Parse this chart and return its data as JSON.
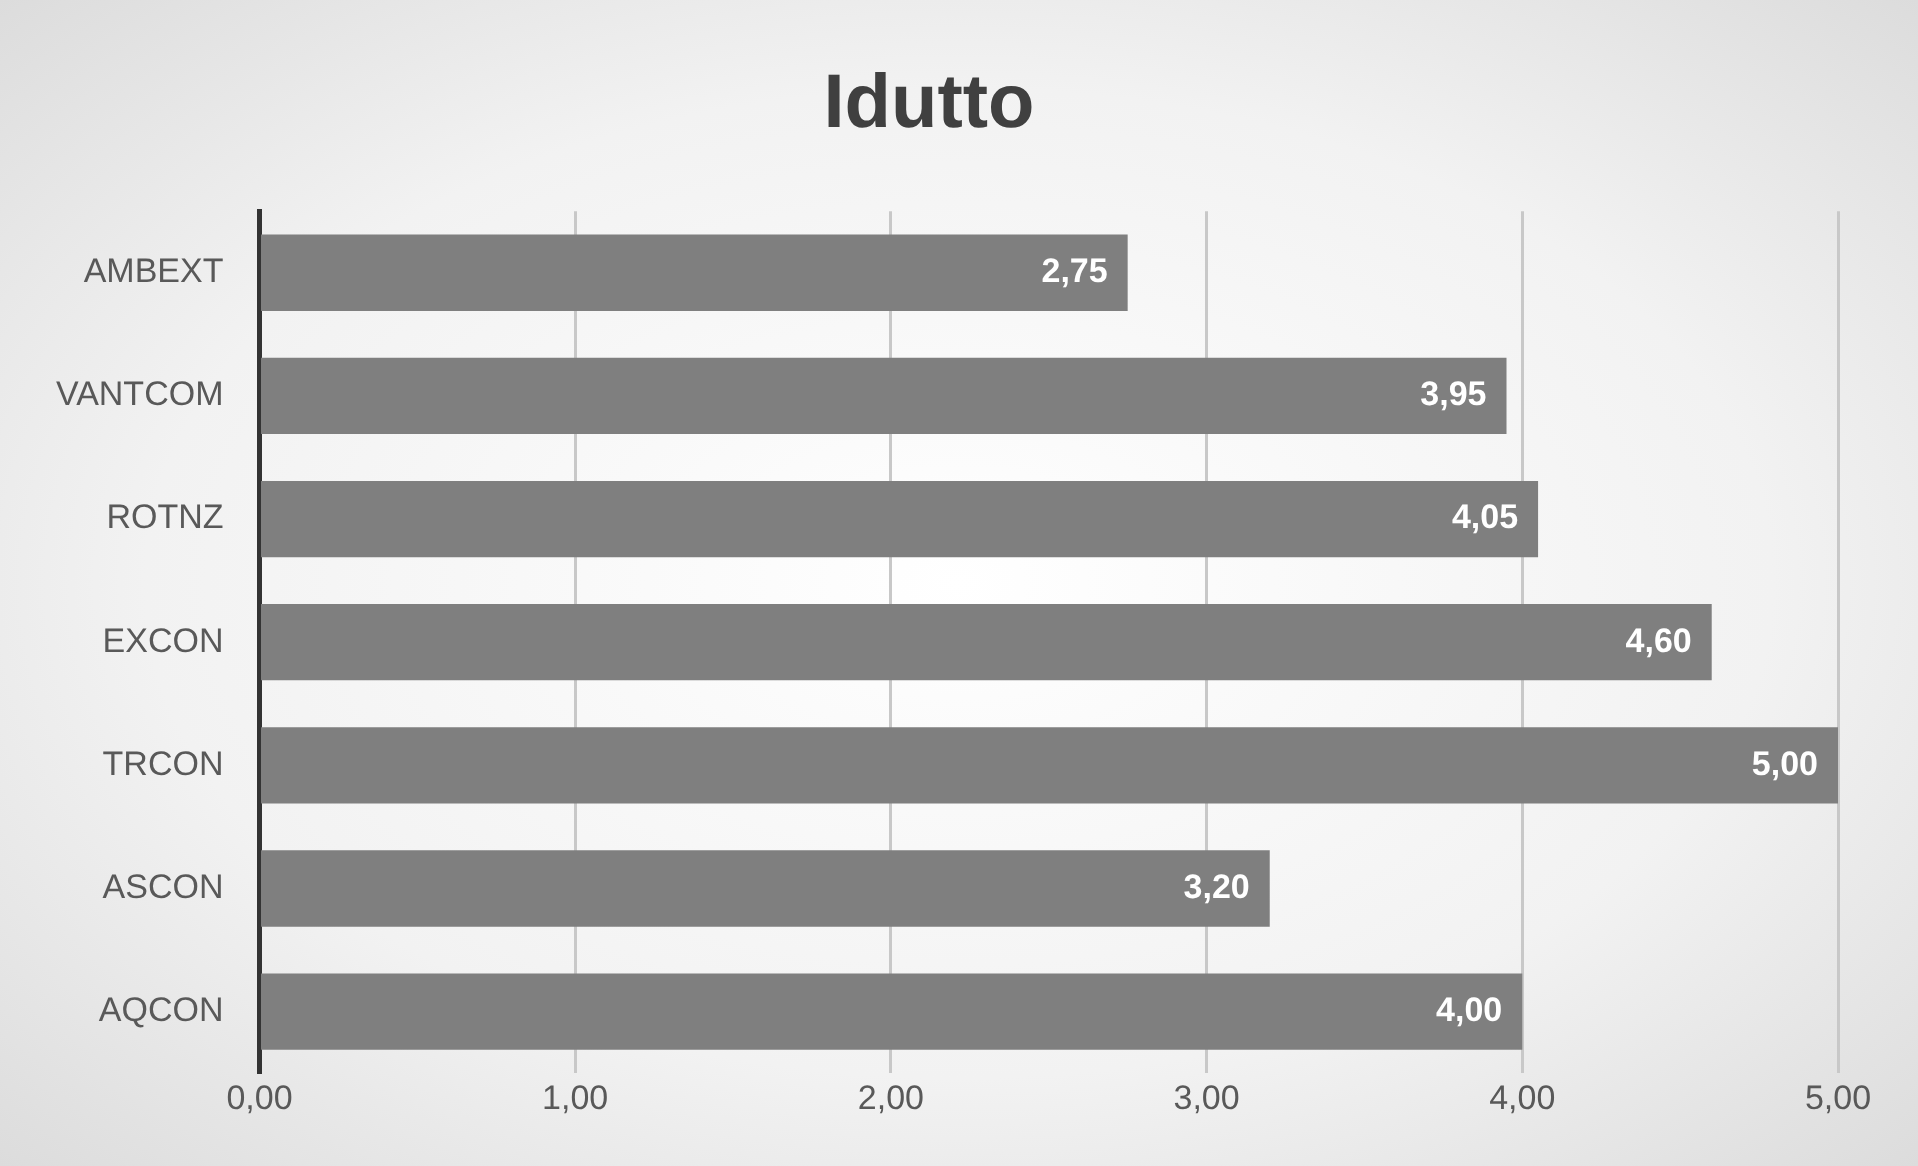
{
  "chart_data": {
    "type": "bar",
    "orientation": "horizontal",
    "title": "Idutto",
    "categories": [
      "AMBEXT",
      "VANTCOM",
      "ROTNZ",
      "EXCON",
      "TRCON",
      "ASCON",
      "AQCON"
    ],
    "values": [
      2.75,
      3.95,
      4.05,
      4.6,
      5.0,
      3.2,
      4.0
    ],
    "value_labels": [
      "2,75",
      "3,95",
      "4,05",
      "4,60",
      "5,00",
      "3,20",
      "4,00"
    ],
    "color": "#7f7f7f",
    "xlim": [
      0,
      5
    ],
    "xticks": [
      {
        "value": 0,
        "label": "0,00"
      },
      {
        "value": 1,
        "label": "1,00"
      },
      {
        "value": 2,
        "label": "2,00"
      },
      {
        "value": 3,
        "label": "3,00"
      },
      {
        "value": 4,
        "label": "4,00"
      },
      {
        "value": 5,
        "label": "5,00"
      }
    ],
    "grid": "x",
    "legend": false
  }
}
